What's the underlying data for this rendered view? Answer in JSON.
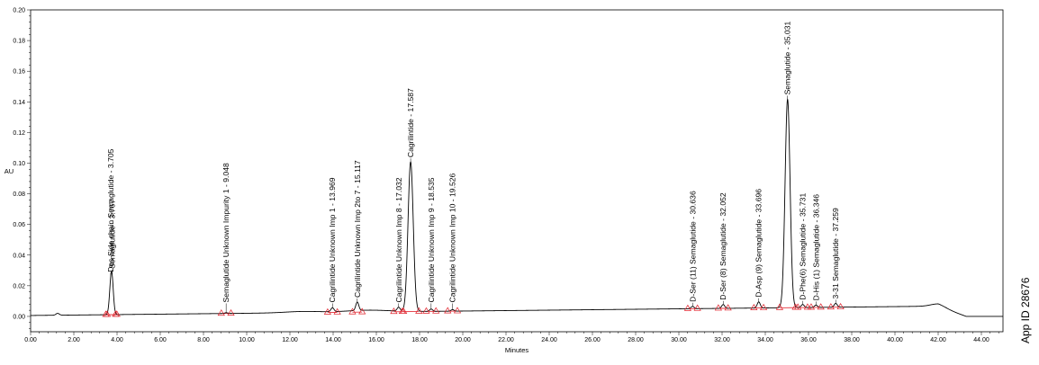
{
  "chart_data": {
    "type": "line",
    "xlabel": "Minutes",
    "ylabel": "AU",
    "xlim": [
      0,
      45
    ],
    "ylim": [
      -0.01,
      0.2
    ],
    "x_ticks": [
      "0.00",
      "2.00",
      "4.00",
      "6.00",
      "8.00",
      "10.00",
      "12.00",
      "14.00",
      "16.00",
      "18.00",
      "20.00",
      "22.00",
      "24.00",
      "26.00",
      "28.00",
      "30.00",
      "32.00",
      "34.00",
      "36.00",
      "38.00",
      "40.00",
      "42.00",
      "44.00"
    ],
    "y_ticks": [
      "0.00",
      "0.02",
      "0.04",
      "0.06",
      "0.08",
      "0.10",
      "0.12",
      "0.14",
      "0.16",
      "0.18",
      "0.20"
    ],
    "grid": false,
    "series": [
      {
        "color": "#000000",
        "peaks": [
          {
            "rt": 3.705,
            "height": 0.012
          },
          {
            "rt": 3.767,
            "height": 0.019
          },
          {
            "rt": 9.048,
            "height": 0.0005
          },
          {
            "rt": 13.969,
            "height": 0.0025
          },
          {
            "rt": 15.117,
            "height": 0.0055
          },
          {
            "rt": 17.032,
            "height": 0.0025
          },
          {
            "rt": 17.587,
            "height": 0.0975
          },
          {
            "rt": 18.535,
            "height": 0.0015
          },
          {
            "rt": 19.526,
            "height": 0.001
          },
          {
            "rt": 30.636,
            "height": 0.0015
          },
          {
            "rt": 32.052,
            "height": 0.0025
          },
          {
            "rt": 33.696,
            "height": 0.004
          },
          {
            "rt": 35.031,
            "height": 0.136
          },
          {
            "rt": 35.731,
            "height": 0.002
          },
          {
            "rt": 36.346,
            "height": 0.0015
          },
          {
            "rt": 37.259,
            "height": 0.0025
          }
        ]
      }
    ],
    "annotations": [
      {
        "text": "Des Side chain Semaglutide - 3.705",
        "x": 3.705
      },
      {
        "text": "Semaglutide - 3.767",
        "x": 3.767
      },
      {
        "text": "Semaglutide Unknown Impurity 1 - 9.048",
        "x": 9.048
      },
      {
        "text": "Cagrilintide Unknown Imp 1 - 13.969",
        "x": 13.969
      },
      {
        "text": "Cagrilintide Unknown Imp 2to 7 - 15.117",
        "x": 15.117
      },
      {
        "text": "Cagrilintide Unknown Imp 8 - 17.032",
        "x": 17.032
      },
      {
        "text": "Cagrilintide - 17.587",
        "x": 17.587
      },
      {
        "text": "Cagrilintide Unknown Imp 9 - 18.535",
        "x": 18.535
      },
      {
        "text": "Cagrilintide Unknown Imp 10 - 19.526",
        "x": 19.526
      },
      {
        "text": "D-Ser (11) Semaglutide - 30.636",
        "x": 30.636
      },
      {
        "text": "D-Ser (8) Semaglutide - 32.052",
        "x": 32.052
      },
      {
        "text": "D-Asp (9) Semaglutide - 33.696",
        "x": 33.696
      },
      {
        "text": "Semaglutide - 35.031",
        "x": 35.031
      },
      {
        "text": "D-Phe(6) Semaglutide - 35.731",
        "x": 35.731
      },
      {
        "text": "D-His (1) Semaglutide - 36.346",
        "x": 36.346
      },
      {
        "text": "3-31 Semaglutide - 37.259",
        "x": 37.259
      }
    ],
    "baseline_markers_color": "#e0202a"
  },
  "app_id": "App ID 28676"
}
